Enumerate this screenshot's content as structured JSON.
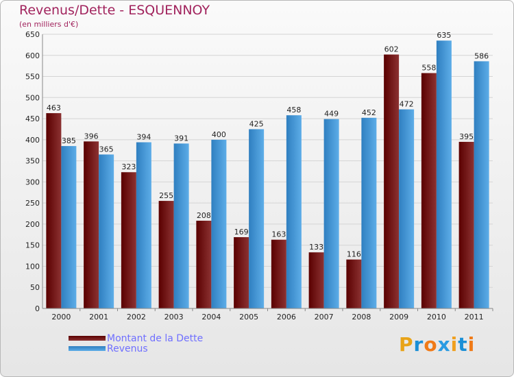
{
  "title": "Revenus/Dette - ESQUENNOY",
  "subtitle": "(en milliers d'€)",
  "brand": {
    "letters": [
      "P",
      "r",
      "o",
      "x",
      "i",
      "t",
      "i"
    ],
    "colors": [
      "#e8a317",
      "#1b8fd6",
      "#f07a17",
      "#2a9be2",
      "#f0a020",
      "#1b8fd6",
      "#f07a17"
    ]
  },
  "colors": {
    "dette_dark": "#5a0000",
    "dette_light": "#8c3232",
    "revenus_dark": "#2f7fc0",
    "revenus_light": "#5dade8",
    "text": "#a1235d",
    "legend_text": "#6f6fff"
  },
  "chart_data": {
    "type": "bar",
    "title": "Revenus/Dette - ESQUENNOY",
    "subtitle": "(en milliers d'€)",
    "categories": [
      "2000",
      "2001",
      "2002",
      "2003",
      "2004",
      "2005",
      "2006",
      "2007",
      "2008",
      "2009",
      "2010",
      "2011"
    ],
    "series": [
      {
        "name": "Montant de la Dette",
        "values": [
          463,
          396,
          323,
          255,
          208,
          169,
          163,
          133,
          116,
          602,
          558,
          395
        ]
      },
      {
        "name": "Revenus",
        "values": [
          385,
          365,
          394,
          391,
          400,
          425,
          458,
          449,
          452,
          472,
          635,
          586
        ]
      }
    ],
    "ylim": [
      0,
      650
    ],
    "yticks": [
      0,
      50,
      100,
      150,
      200,
      250,
      300,
      350,
      400,
      450,
      500,
      550,
      600,
      650
    ],
    "grid": true,
    "legend_position": "bottom-left"
  }
}
